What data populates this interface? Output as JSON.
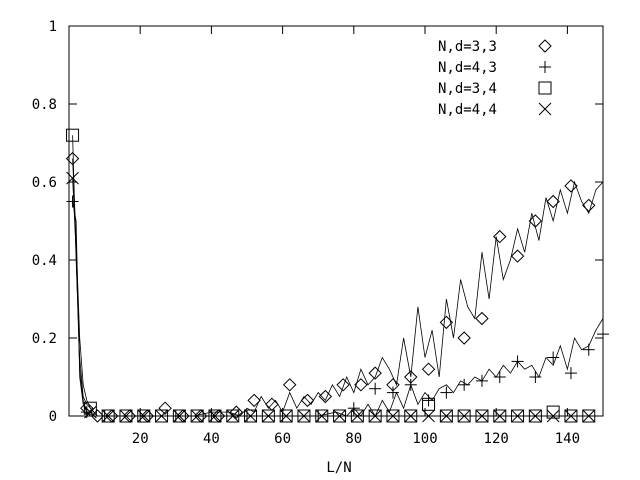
{
  "chart_data": {
    "type": "line",
    "title": "",
    "xlabel": "L/N",
    "ylabel": "",
    "xlim": [
      0,
      150
    ],
    "ylim": [
      0,
      1
    ],
    "xticks": [
      20,
      40,
      60,
      80,
      100,
      120,
      140
    ],
    "xtick_labels": [
      "20",
      "40",
      "60",
      "80",
      "100",
      "120",
      "140"
    ],
    "yticks": [
      0,
      0.2,
      0.4,
      0.6,
      0.8,
      1
    ],
    "ytick_labels": [
      "0",
      "0.2",
      "0.4",
      "0.6",
      "0.8",
      "1"
    ],
    "legend_position": "top-right",
    "grid": false,
    "series": [
      {
        "name": "N,d=3,3",
        "marker": "diamond",
        "line": [
          [
            1,
            0.66
          ],
          [
            2,
            0.45
          ],
          [
            3,
            0.2
          ],
          [
            4,
            0.08
          ],
          [
            5,
            0.04
          ],
          [
            6,
            0.02
          ],
          [
            7,
            0.01
          ],
          [
            8,
            0
          ],
          [
            10,
            0
          ],
          [
            15,
            0
          ],
          [
            20,
            0
          ],
          [
            25,
            0
          ],
          [
            30,
            0
          ],
          [
            35,
            0
          ],
          [
            40,
            0.01
          ],
          [
            45,
            0.01
          ],
          [
            48,
            0
          ],
          [
            50,
            0.02
          ],
          [
            52,
            0.01
          ],
          [
            54,
            0.05
          ],
          [
            56,
            0.02
          ],
          [
            58,
            0.04
          ],
          [
            60,
            0.01
          ],
          [
            62,
            0.06
          ],
          [
            64,
            0.02
          ],
          [
            66,
            0.05
          ],
          [
            68,
            0.03
          ],
          [
            70,
            0.06
          ],
          [
            72,
            0.04
          ],
          [
            74,
            0.08
          ],
          [
            76,
            0.05
          ],
          [
            78,
            0.1
          ],
          [
            80,
            0.06
          ],
          [
            82,
            0.12
          ],
          [
            84,
            0.08
          ],
          [
            86,
            0.1
          ],
          [
            88,
            0.15
          ],
          [
            90,
            0.12
          ],
          [
            92,
            0.08
          ],
          [
            94,
            0.2
          ],
          [
            96,
            0.1
          ],
          [
            98,
            0.28
          ],
          [
            100,
            0.15
          ],
          [
            102,
            0.22
          ],
          [
            104,
            0.1
          ],
          [
            106,
            0.3
          ],
          [
            108,
            0.2
          ],
          [
            110,
            0.35
          ],
          [
            112,
            0.28
          ],
          [
            114,
            0.25
          ],
          [
            116,
            0.42
          ],
          [
            118,
            0.3
          ],
          [
            120,
            0.46
          ],
          [
            122,
            0.35
          ],
          [
            124,
            0.4
          ],
          [
            126,
            0.48
          ],
          [
            128,
            0.42
          ],
          [
            130,
            0.52
          ],
          [
            132,
            0.45
          ],
          [
            134,
            0.56
          ],
          [
            136,
            0.5
          ],
          [
            138,
            0.58
          ],
          [
            140,
            0.52
          ],
          [
            142,
            0.6
          ],
          [
            144,
            0.55
          ],
          [
            146,
            0.52
          ],
          [
            148,
            0.58
          ],
          [
            150,
            0.6
          ]
        ],
        "points": [
          [
            1,
            0.66
          ],
          [
            5,
            0.02
          ],
          [
            8,
            0
          ],
          [
            12,
            0
          ],
          [
            17,
            0
          ],
          [
            22,
            0
          ],
          [
            27,
            0.02
          ],
          [
            32,
            0
          ],
          [
            37,
            0
          ],
          [
            42,
            0
          ],
          [
            47,
            0.01
          ],
          [
            52,
            0.04
          ],
          [
            57,
            0.03
          ],
          [
            62,
            0.08
          ],
          [
            67,
            0.04
          ],
          [
            72,
            0.05
          ],
          [
            77,
            0.08
          ],
          [
            82,
            0.08
          ],
          [
            86,
            0.11
          ],
          [
            91,
            0.08
          ],
          [
            96,
            0.1
          ],
          [
            101,
            0.12
          ],
          [
            106,
            0.24
          ],
          [
            111,
            0.2
          ],
          [
            116,
            0.25
          ],
          [
            121,
            0.46
          ],
          [
            126,
            0.41
          ],
          [
            131,
            0.5
          ],
          [
            136,
            0.55
          ],
          [
            141,
            0.59
          ],
          [
            146,
            0.54
          ]
        ]
      },
      {
        "name": "N,d=4,3",
        "marker": "plus",
        "line": [
          [
            1,
            0.55
          ],
          [
            2,
            0.5
          ],
          [
            3,
            0.1
          ],
          [
            4,
            0.03
          ],
          [
            5,
            0.01
          ],
          [
            6,
            0
          ],
          [
            10,
            0
          ],
          [
            20,
            0
          ],
          [
            30,
            0
          ],
          [
            40,
            0
          ],
          [
            50,
            0
          ],
          [
            60,
            0
          ],
          [
            70,
            0
          ],
          [
            75,
            0.01
          ],
          [
            78,
            0
          ],
          [
            80,
            0.02
          ],
          [
            82,
            0
          ],
          [
            84,
            0.03
          ],
          [
            86,
            0
          ],
          [
            88,
            0.04
          ],
          [
            90,
            0.01
          ],
          [
            92,
            0.06
          ],
          [
            94,
            0.02
          ],
          [
            96,
            0.08
          ],
          [
            98,
            0.03
          ],
          [
            100,
            0.06
          ],
          [
            102,
            0.04
          ],
          [
            104,
            0.07
          ],
          [
            106,
            0.08
          ],
          [
            108,
            0.06
          ],
          [
            110,
            0.09
          ],
          [
            112,
            0.08
          ],
          [
            114,
            0.1
          ],
          [
            116,
            0.09
          ],
          [
            118,
            0.12
          ],
          [
            120,
            0.1
          ],
          [
            122,
            0.13
          ],
          [
            124,
            0.11
          ],
          [
            126,
            0.14
          ],
          [
            128,
            0.12
          ],
          [
            130,
            0.13
          ],
          [
            132,
            0.1
          ],
          [
            134,
            0.15
          ],
          [
            136,
            0.13
          ],
          [
            138,
            0.18
          ],
          [
            140,
            0.12
          ],
          [
            142,
            0.2
          ],
          [
            144,
            0.17
          ],
          [
            146,
            0.18
          ],
          [
            148,
            0.22
          ],
          [
            150,
            0.25
          ]
        ],
        "points": [
          [
            1,
            0.55
          ],
          [
            5,
            0.01
          ],
          [
            10,
            0
          ],
          [
            20,
            0
          ],
          [
            30,
            0
          ],
          [
            40,
            0
          ],
          [
            50,
            0
          ],
          [
            60,
            0
          ],
          [
            70,
            0
          ],
          [
            80,
            0.02
          ],
          [
            86,
            0.07
          ],
          [
            91,
            0.06
          ],
          [
            96,
            0.08
          ],
          [
            101,
            0.04
          ],
          [
            106,
            0.06
          ],
          [
            111,
            0.08
          ],
          [
            116,
            0.09
          ],
          [
            121,
            0.1
          ],
          [
            126,
            0.14
          ],
          [
            131,
            0.1
          ],
          [
            136,
            0.15
          ],
          [
            141,
            0.11
          ],
          [
            146,
            0.17
          ],
          [
            150,
            0.21
          ]
        ]
      },
      {
        "name": "N,d=3,4",
        "marker": "square",
        "line": [
          [
            1,
            0.72
          ],
          [
            2,
            0.4
          ],
          [
            3,
            0.15
          ],
          [
            4,
            0.05
          ],
          [
            5,
            0.03
          ],
          [
            6,
            0.02
          ],
          [
            8,
            0
          ],
          [
            150,
            0
          ]
        ],
        "points": [
          [
            1,
            0.72
          ],
          [
            6,
            0.02
          ],
          [
            11,
            0
          ],
          [
            16,
            0
          ],
          [
            21,
            0
          ],
          [
            26,
            0
          ],
          [
            31,
            0
          ],
          [
            36,
            0
          ],
          [
            41,
            0
          ],
          [
            46,
            0
          ],
          [
            51,
            0
          ],
          [
            56,
            0
          ],
          [
            61,
            0
          ],
          [
            66,
            0
          ],
          [
            71,
            0
          ],
          [
            76,
            0
          ],
          [
            81,
            0
          ],
          [
            86,
            0
          ],
          [
            91,
            0
          ],
          [
            96,
            0
          ],
          [
            101,
            0.03
          ],
          [
            106,
            0
          ],
          [
            111,
            0
          ],
          [
            116,
            0
          ],
          [
            121,
            0
          ],
          [
            126,
            0
          ],
          [
            131,
            0
          ],
          [
            136,
            0.01
          ],
          [
            141,
            0
          ],
          [
            146,
            0
          ]
        ]
      },
      {
        "name": "N,d=4,4",
        "marker": "cross",
        "line": [
          [
            1,
            0.61
          ],
          [
            2,
            0.42
          ],
          [
            3,
            0.12
          ],
          [
            4,
            0.04
          ],
          [
            5,
            0.01
          ],
          [
            6,
            0
          ],
          [
            150,
            0
          ]
        ],
        "points": [
          [
            1,
            0.61
          ],
          [
            6,
            0.01
          ],
          [
            11,
            0
          ],
          [
            16,
            0
          ],
          [
            21,
            0
          ],
          [
            26,
            0
          ],
          [
            31,
            0
          ],
          [
            36,
            0
          ],
          [
            41,
            0
          ],
          [
            46,
            0
          ],
          [
            51,
            0
          ],
          [
            56,
            0
          ],
          [
            61,
            0
          ],
          [
            66,
            0
          ],
          [
            71,
            0
          ],
          [
            76,
            0
          ],
          [
            81,
            0
          ],
          [
            86,
            0
          ],
          [
            91,
            0
          ],
          [
            96,
            0
          ],
          [
            101,
            0
          ],
          [
            106,
            0
          ],
          [
            111,
            0
          ],
          [
            116,
            0
          ],
          [
            121,
            0
          ],
          [
            126,
            0
          ],
          [
            131,
            0
          ],
          [
            136,
            0
          ],
          [
            141,
            0
          ],
          [
            146,
            0
          ]
        ]
      }
    ]
  }
}
